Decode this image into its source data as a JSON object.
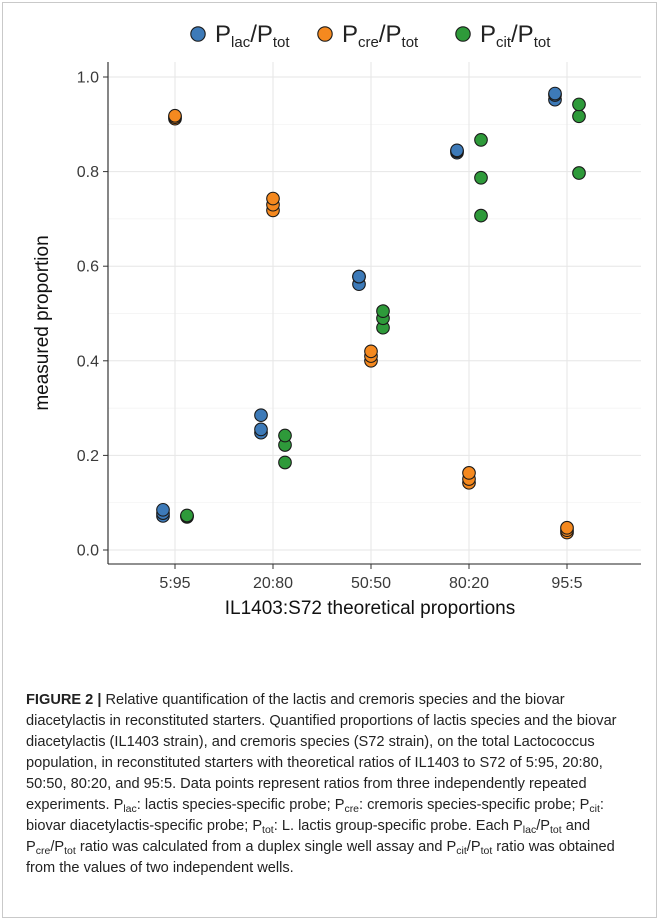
{
  "chart_data": {
    "type": "scatter",
    "xlabel": "IL1403:S72 theoretical proportions",
    "ylabel": "measured proportion",
    "categories": [
      "5:95",
      "20:80",
      "50:50",
      "80:20",
      "95:5"
    ],
    "ylim": [
      0,
      1
    ],
    "yticks": [
      "0.0",
      "0.2",
      "0.4",
      "0.6",
      "0.8",
      "1.0"
    ],
    "grid": true,
    "legend_position": "top",
    "series": [
      {
        "name_main": "P",
        "name_sub": "lac",
        "name_sep": "/P",
        "name_sub2": "tot",
        "color": "#3d7ab8",
        "values": [
          [
            0.072,
            0.078,
            0.085
          ],
          [
            0.248,
            0.255,
            0.285
          ],
          [
            0.562,
            0.578,
            0.578
          ],
          [
            0.84,
            0.843,
            0.845
          ],
          [
            0.952,
            0.962,
            0.965
          ]
        ]
      },
      {
        "name_main": "P",
        "name_sub": "cre",
        "name_sep": "/P",
        "name_sub2": "tot",
        "color": "#f5891f",
        "values": [
          [
            0.912,
            0.915,
            0.918
          ],
          [
            0.718,
            0.73,
            0.743
          ],
          [
            0.4,
            0.41,
            0.42
          ],
          [
            0.142,
            0.15,
            0.163
          ],
          [
            0.037,
            0.042,
            0.047
          ]
        ]
      },
      {
        "name_main": "P",
        "name_sub": "cit",
        "name_sep": "/P",
        "name_sub2": "tot",
        "color": "#2e9a3a",
        "values": [
          [
            0.07,
            0.072,
            0.073
          ],
          [
            0.185,
            0.222,
            0.242
          ],
          [
            0.47,
            0.49,
            0.505
          ],
          [
            0.707,
            0.787,
            0.867
          ],
          [
            0.797,
            0.917,
            0.942
          ]
        ]
      }
    ]
  },
  "caption": {
    "figure_label": "FIGURE 2 |",
    "line1": " Relative quantification of the lactis and cremoris species and the biovar diacetylactis in reconstituted starters. Quantified proportions of lactis species and the biovar diacetylactis (IL1403 strain), and cremoris species (S72 strain), on the total Lactococcus population, in reconstituted starters with theoretical ratios of IL1403 to S72 of 5:95, 20:80, 50:50, 80:20, and 95:5. Data points represent ratios from three independently repeated experiments. ",
    "probe_lac": "P",
    "probe_lac_sub": "lac",
    "probe_lac_text": ": lactis species-specific probe; ",
    "probe_cre": "P",
    "probe_cre_sub": "cre",
    "probe_cre_text": ": cremoris species-specific probe; ",
    "probe_cit": "P",
    "probe_cit_sub": "cit",
    "probe_cit_text": ": biovar diacetylactis-specific probe; ",
    "probe_tot": "P",
    "probe_tot_sub": "tot",
    "probe_tot_text": ": L. lactis group-specific probe. Each ",
    "ratio1": "P",
    "ratio1_sub": "lac",
    "ratio1_mid": "/P",
    "ratio1_sub2": "tot",
    "and1": " and ",
    "ratio2": "P",
    "ratio2_sub": "cre",
    "ratio2_mid": "/P",
    "ratio2_sub2": "tot",
    "text2": " ratio was calculated from a duplex single well assay and ",
    "ratio3": "P",
    "ratio3_sub": "cit",
    "ratio3_mid": "/P",
    "ratio3_sub2": "tot",
    "text3": " ratio was obtained from the values of two independent wells."
  }
}
